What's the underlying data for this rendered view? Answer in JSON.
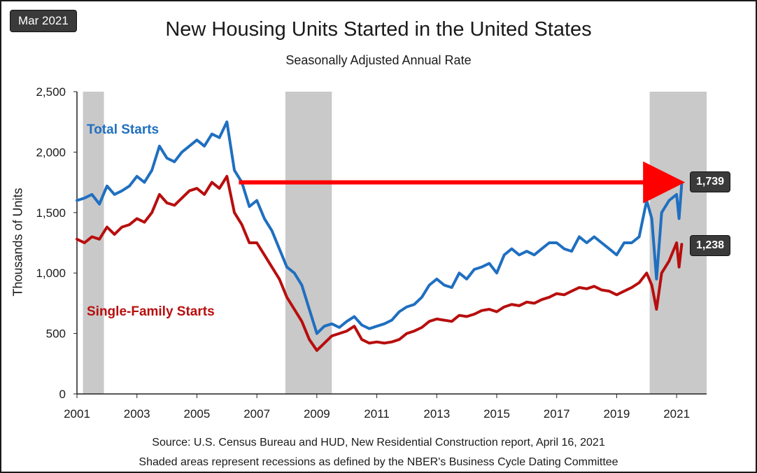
{
  "badge": "Mar 2021",
  "chart_data": {
    "type": "line",
    "title": "New Housing Units Started in the United States",
    "subtitle": "Seasonally Adjusted Annual Rate",
    "ylabel": "Thousands of Units",
    "xlabel": "",
    "xlim": [
      2001,
      2022
    ],
    "ylim": [
      0,
      2500
    ],
    "yticks": [
      0,
      500,
      1000,
      1500,
      2000,
      2500
    ],
    "ytick_labels": [
      "0",
      "500",
      "1,000",
      "1,500",
      "2,000",
      "2,500"
    ],
    "xticks": [
      2001,
      2003,
      2005,
      2007,
      2009,
      2011,
      2013,
      2015,
      2017,
      2019,
      2021
    ],
    "xtick_labels": [
      "2001",
      "2003",
      "2005",
      "2007",
      "2009",
      "2011",
      "2013",
      "2015",
      "2017",
      "2019",
      "2021"
    ],
    "recessions": [
      [
        2001.2,
        2001.9
      ],
      [
        2007.95,
        2009.5
      ],
      [
        2020.1,
        2022.0
      ]
    ],
    "grid": false,
    "series": [
      {
        "name": "Total Starts",
        "color": "#1f6fc0",
        "x": [
          2001.0,
          2001.25,
          2001.5,
          2001.75,
          2002.0,
          2002.25,
          2002.5,
          2002.75,
          2003.0,
          2003.25,
          2003.5,
          2003.75,
          2004.0,
          2004.25,
          2004.5,
          2004.75,
          2005.0,
          2005.25,
          2005.5,
          2005.75,
          2006.0,
          2006.25,
          2006.5,
          2006.75,
          2007.0,
          2007.25,
          2007.5,
          2007.75,
          2008.0,
          2008.25,
          2008.5,
          2008.75,
          2009.0,
          2009.25,
          2009.5,
          2009.75,
          2010.0,
          2010.25,
          2010.5,
          2010.75,
          2011.0,
          2011.25,
          2011.5,
          2011.75,
          2012.0,
          2012.25,
          2012.5,
          2012.75,
          2013.0,
          2013.25,
          2013.5,
          2013.75,
          2014.0,
          2014.25,
          2014.5,
          2014.75,
          2015.0,
          2015.25,
          2015.5,
          2015.75,
          2016.0,
          2016.25,
          2016.5,
          2016.75,
          2017.0,
          2017.25,
          2017.5,
          2017.75,
          2018.0,
          2018.25,
          2018.5,
          2018.75,
          2019.0,
          2019.25,
          2019.5,
          2019.75,
          2020.0,
          2020.17,
          2020.33,
          2020.5,
          2020.75,
          2021.0,
          2021.08,
          2021.17
        ],
        "values": [
          1600,
          1620,
          1650,
          1570,
          1720,
          1650,
          1680,
          1720,
          1800,
          1750,
          1850,
          2050,
          1950,
          1920,
          2000,
          2050,
          2100,
          2050,
          2150,
          2120,
          2250,
          1850,
          1750,
          1550,
          1600,
          1450,
          1350,
          1200,
          1050,
          1000,
          900,
          700,
          500,
          560,
          580,
          550,
          600,
          640,
          570,
          540,
          560,
          580,
          610,
          680,
          720,
          740,
          800,
          900,
          950,
          900,
          880,
          1000,
          950,
          1030,
          1050,
          1080,
          1000,
          1150,
          1200,
          1150,
          1180,
          1150,
          1200,
          1250,
          1250,
          1200,
          1180,
          1300,
          1250,
          1300,
          1250,
          1200,
          1150,
          1250,
          1250,
          1300,
          1600,
          1450,
          950,
          1500,
          1600,
          1650,
          1450,
          1739
        ]
      },
      {
        "name": "Single-Family Starts",
        "color": "#b80e0e",
        "x": [
          2001.0,
          2001.25,
          2001.5,
          2001.75,
          2002.0,
          2002.25,
          2002.5,
          2002.75,
          2003.0,
          2003.25,
          2003.5,
          2003.75,
          2004.0,
          2004.25,
          2004.5,
          2004.75,
          2005.0,
          2005.25,
          2005.5,
          2005.75,
          2006.0,
          2006.25,
          2006.5,
          2006.75,
          2007.0,
          2007.25,
          2007.5,
          2007.75,
          2008.0,
          2008.25,
          2008.5,
          2008.75,
          2009.0,
          2009.25,
          2009.5,
          2009.75,
          2010.0,
          2010.25,
          2010.5,
          2010.75,
          2011.0,
          2011.25,
          2011.5,
          2011.75,
          2012.0,
          2012.25,
          2012.5,
          2012.75,
          2013.0,
          2013.25,
          2013.5,
          2013.75,
          2014.0,
          2014.25,
          2014.5,
          2014.75,
          2015.0,
          2015.25,
          2015.5,
          2015.75,
          2016.0,
          2016.25,
          2016.5,
          2016.75,
          2017.0,
          2017.25,
          2017.5,
          2017.75,
          2018.0,
          2018.25,
          2018.5,
          2018.75,
          2019.0,
          2019.25,
          2019.5,
          2019.75,
          2020.0,
          2020.17,
          2020.33,
          2020.5,
          2020.75,
          2021.0,
          2021.08,
          2021.17
        ],
        "values": [
          1280,
          1250,
          1300,
          1280,
          1380,
          1320,
          1380,
          1400,
          1450,
          1420,
          1500,
          1650,
          1580,
          1560,
          1620,
          1680,
          1700,
          1650,
          1750,
          1700,
          1800,
          1500,
          1400,
          1250,
          1250,
          1150,
          1050,
          950,
          800,
          700,
          600,
          450,
          360,
          420,
          480,
          500,
          520,
          560,
          450,
          420,
          430,
          420,
          430,
          450,
          500,
          520,
          550,
          600,
          620,
          610,
          600,
          650,
          640,
          660,
          690,
          700,
          680,
          720,
          740,
          730,
          760,
          750,
          780,
          800,
          830,
          820,
          850,
          880,
          870,
          890,
          860,
          850,
          820,
          850,
          880,
          920,
          1000,
          900,
          700,
          1000,
          1100,
          1250,
          1050,
          1238
        ]
      }
    ],
    "callouts": [
      {
        "label": "1,739",
        "series": "Total Starts"
      },
      {
        "label": "1,238",
        "series": "Single-Family Starts"
      }
    ],
    "arrow": {
      "from": [
        2006.4,
        1750
      ],
      "to": [
        2021.0,
        1750
      ],
      "color": "#ff0000"
    }
  },
  "footer": {
    "source": "Source:   U.S. Census Bureau and HUD, New  Residential Construction report, April 16, 2021",
    "note": "Shaded areas represent recessions as defined by the NBER's  Business Cycle Dating Committee"
  }
}
